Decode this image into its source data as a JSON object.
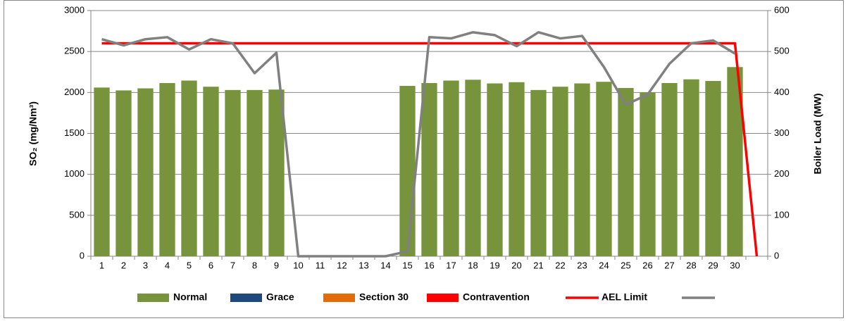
{
  "chart_data": {
    "type": "bar",
    "categories": [
      "1",
      "2",
      "3",
      "4",
      "5",
      "6",
      "7",
      "8",
      "9",
      "10",
      "11",
      "12",
      "13",
      "14",
      "15",
      "16",
      "17",
      "18",
      "19",
      "20",
      "21",
      "22",
      "23",
      "24",
      "25",
      "26",
      "27",
      "28",
      "29",
      "30",
      null
    ],
    "y_label": "SO₂  (mg/Nm³)",
    "y2_label": "Boiler Load (MW)",
    "ylim": [
      0,
      3000
    ],
    "yticks": [
      0,
      500,
      1000,
      1500,
      2000,
      2500,
      3000
    ],
    "y2lim": [
      0,
      600
    ],
    "y2ticks": [
      0,
      100,
      200,
      300,
      400,
      500,
      600
    ],
    "grid": true,
    "legend": "bottom",
    "series": [
      {
        "name": "Normal",
        "type": "bar",
        "color": "#77933c",
        "values": [
          2060,
          2025,
          2050,
          2115,
          2145,
          2070,
          2030,
          2030,
          2035,
          null,
          null,
          null,
          null,
          null,
          2080,
          2115,
          2145,
          2155,
          2110,
          2125,
          2030,
          2070,
          2110,
          2130,
          2055,
          2000,
          2115,
          2160,
          2140,
          2310,
          null
        ]
      },
      {
        "name": "Grace",
        "type": "bar",
        "color": "#1f497d",
        "values": [
          null,
          null,
          null,
          null,
          null,
          null,
          null,
          null,
          null,
          null,
          null,
          null,
          null,
          null,
          null,
          null,
          null,
          null,
          null,
          null,
          null,
          null,
          null,
          null,
          null,
          null,
          null,
          null,
          null,
          null,
          null
        ]
      },
      {
        "name": "Section 30",
        "type": "bar",
        "color": "#e36c09",
        "values": [
          null,
          null,
          null,
          null,
          null,
          null,
          null,
          null,
          null,
          null,
          null,
          null,
          null,
          null,
          null,
          null,
          null,
          null,
          null,
          null,
          null,
          null,
          null,
          null,
          null,
          null,
          null,
          null,
          null,
          null,
          null
        ]
      },
      {
        "name": "Contravention",
        "type": "bar",
        "color": "#ff0000",
        "values": [
          null,
          null,
          null,
          null,
          null,
          null,
          null,
          null,
          null,
          null,
          null,
          null,
          null,
          null,
          null,
          null,
          null,
          null,
          null,
          null,
          null,
          null,
          null,
          null,
          null,
          null,
          null,
          null,
          null,
          null,
          null
        ]
      },
      {
        "name": "AEL Limit",
        "type": "line",
        "color": "#ff0000",
        "values": [
          2600,
          2600,
          2600,
          2600,
          2600,
          2600,
          2600,
          2600,
          2600,
          2600,
          2600,
          2600,
          2600,
          2600,
          2600,
          2600,
          2600,
          2600,
          2600,
          2600,
          2600,
          2600,
          2600,
          2600,
          2600,
          2600,
          2600,
          2600,
          2600,
          2600,
          0
        ]
      },
      {
        "type": "line",
        "color": "#808080",
        "axis": "y2",
        "values": [
          530,
          515,
          530,
          535,
          505,
          530,
          520,
          447,
          497,
          0,
          0,
          0,
          0,
          0,
          12,
          535,
          532,
          547,
          540,
          513,
          547,
          532,
          538,
          462,
          370,
          395,
          470,
          520,
          527,
          495,
          null
        ]
      }
    ]
  }
}
